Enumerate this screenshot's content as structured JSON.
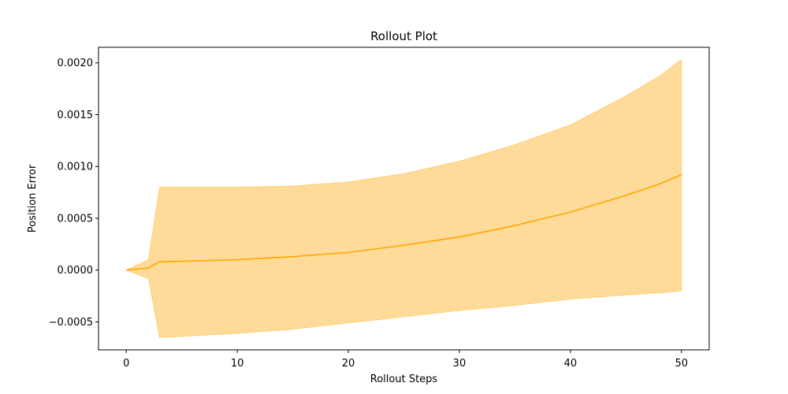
{
  "chart_data": {
    "type": "line",
    "title": "Rollout Plot",
    "xlabel": "Rollout Steps",
    "ylabel": "Position Error",
    "xlim": [
      -2.5,
      52.5
    ],
    "ylim": [
      -0.00077,
      0.00215
    ],
    "xticks": [
      0,
      10,
      20,
      30,
      40,
      50
    ],
    "xtick_labels": [
      "0",
      "10",
      "20",
      "30",
      "40",
      "50"
    ],
    "yticks": [
      -0.0005,
      0.0,
      0.0005,
      0.001,
      0.0015,
      0.002
    ],
    "ytick_labels": [
      "−0.0005",
      "0.0000",
      "0.0005",
      "0.0010",
      "0.0015",
      "0.0020"
    ],
    "grid": false,
    "legend": "none",
    "colors": {
      "line": "#ffa500",
      "band": "#ffa500"
    },
    "series": [
      {
        "x": [
          0,
          1,
          2,
          3,
          5,
          10,
          15,
          20,
          25,
          30,
          35,
          40,
          45,
          48,
          50
        ],
        "mean": [
          0.0,
          1e-05,
          2e-05,
          8e-05,
          8.5e-05,
          0.0001,
          0.00013,
          0.00017,
          0.00024,
          0.00032,
          0.00043,
          0.00056,
          0.00072,
          0.00083,
          0.00092
        ],
        "upper": [
          0.0,
          5e-05,
          0.0001,
          0.0008,
          0.0008,
          0.0008,
          0.00081,
          0.00085,
          0.00093,
          0.00105,
          0.00121,
          0.0014,
          0.00168,
          0.00187,
          0.00203
        ],
        "lower": [
          0.0,
          -4e-05,
          -8e-05,
          -0.00065,
          -0.00064,
          -0.00061,
          -0.00057,
          -0.00051,
          -0.00045,
          -0.00039,
          -0.00034,
          -0.00028,
          -0.00024,
          -0.00022,
          -0.0002
        ]
      }
    ]
  }
}
